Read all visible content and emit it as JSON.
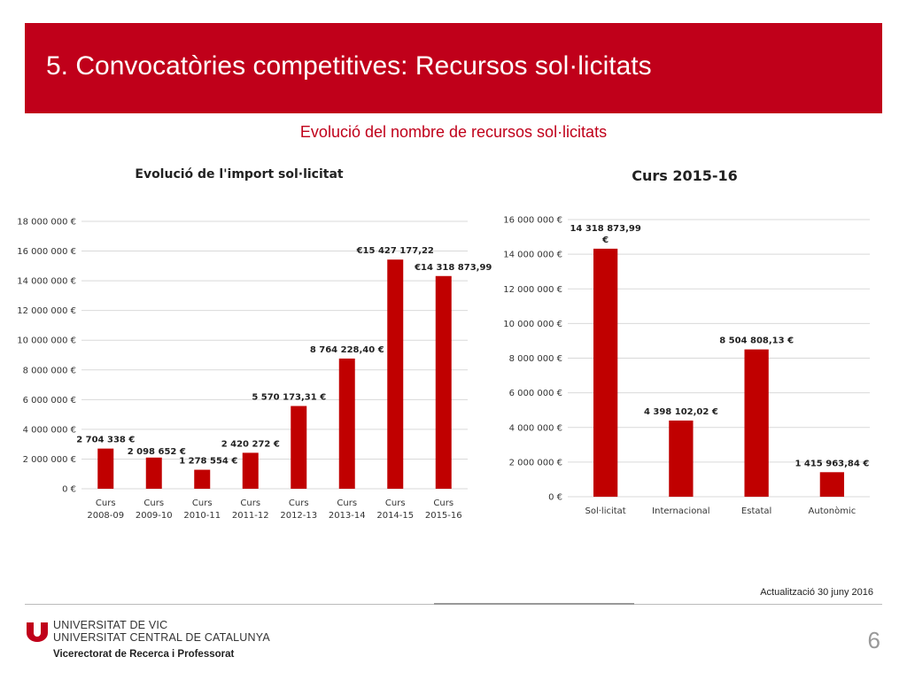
{
  "header": {
    "title": "5. Convocatòries competitives: Recursos sol·licitats"
  },
  "subtitle": "Evolució del nombre de recursos sol·licitats",
  "colors": {
    "accent": "#c0001a",
    "bar": "#c00000"
  },
  "chart_data": [
    {
      "type": "bar",
      "title": "Evolució de l'import sol·licitat",
      "categories": [
        [
          "Curs",
          "2008-09"
        ],
        [
          "Curs",
          "2009-10"
        ],
        [
          "Curs",
          "2010-11"
        ],
        [
          "Curs",
          "2011-12"
        ],
        [
          "Curs",
          "2012-13"
        ],
        [
          "Curs",
          "2013-14"
        ],
        [
          "Curs",
          "2014-15"
        ],
        [
          "Curs",
          "2015-16"
        ]
      ],
      "values": [
        2704338,
        2098652,
        1278554,
        2420272,
        5570173.31,
        8764228.4,
        15427177.22,
        14318873.99
      ],
      "data_labels": [
        "2 704 338 €",
        "2 098 652 €",
        "1 278 554 €",
        "2 420 272 €",
        "5 570 173,31 €",
        "8 764 228,40 €",
        "€15 427 177,22",
        "€14 318 873,99"
      ],
      "ylim": [
        0,
        18000000
      ],
      "y_ticks": [
        0,
        2000000,
        4000000,
        6000000,
        8000000,
        10000000,
        12000000,
        14000000,
        16000000,
        18000000
      ],
      "y_tick_labels": [
        "0 €",
        "2 000 000 €",
        "4 000 000 €",
        "6 000 000 €",
        "8 000 000 €",
        "10 000 000 €",
        "12 000 000 €",
        "14 000 000 €",
        "16 000 000 €",
        "18 000 000 €"
      ],
      "grid": true,
      "legend": "none"
    },
    {
      "type": "bar",
      "title": "Curs 2015-16",
      "categories": [
        [
          "Sol·licitat"
        ],
        [
          "Internacional"
        ],
        [
          "Estatal"
        ],
        [
          "Autonòmic"
        ]
      ],
      "values": [
        14318873.99,
        4398102.02,
        8504808.13,
        1415963.84
      ],
      "data_labels": [
        [
          "14 318 873,99",
          "€"
        ],
        [
          "4 398 102,02 €"
        ],
        [
          "8 504 808,13 €"
        ],
        [
          "1 415 963,84 €"
        ]
      ],
      "ylim": [
        0,
        16000000
      ],
      "y_ticks": [
        0,
        2000000,
        4000000,
        6000000,
        8000000,
        10000000,
        12000000,
        14000000,
        16000000
      ],
      "y_tick_labels": [
        "0 €",
        "2 000 000 €",
        "4 000 000 €",
        "6 000 000 €",
        "8 000 000 €",
        "10 000 000 €",
        "12 000 000 €",
        "14 000 000 €",
        "16 000 000 €"
      ],
      "grid": true,
      "legend": "none"
    }
  ],
  "footer": {
    "update": "Actualització 30 juny 2016",
    "university_line1": "UNIVERSITAT DE VIC",
    "university_line2": "UNIVERSITAT CENTRAL DE CATALUNYA",
    "vicerectorat": "Vicerectorat de Recerca i Professorat",
    "page_number": "6",
    "logo_icon": "uvic-u-logo-icon"
  }
}
